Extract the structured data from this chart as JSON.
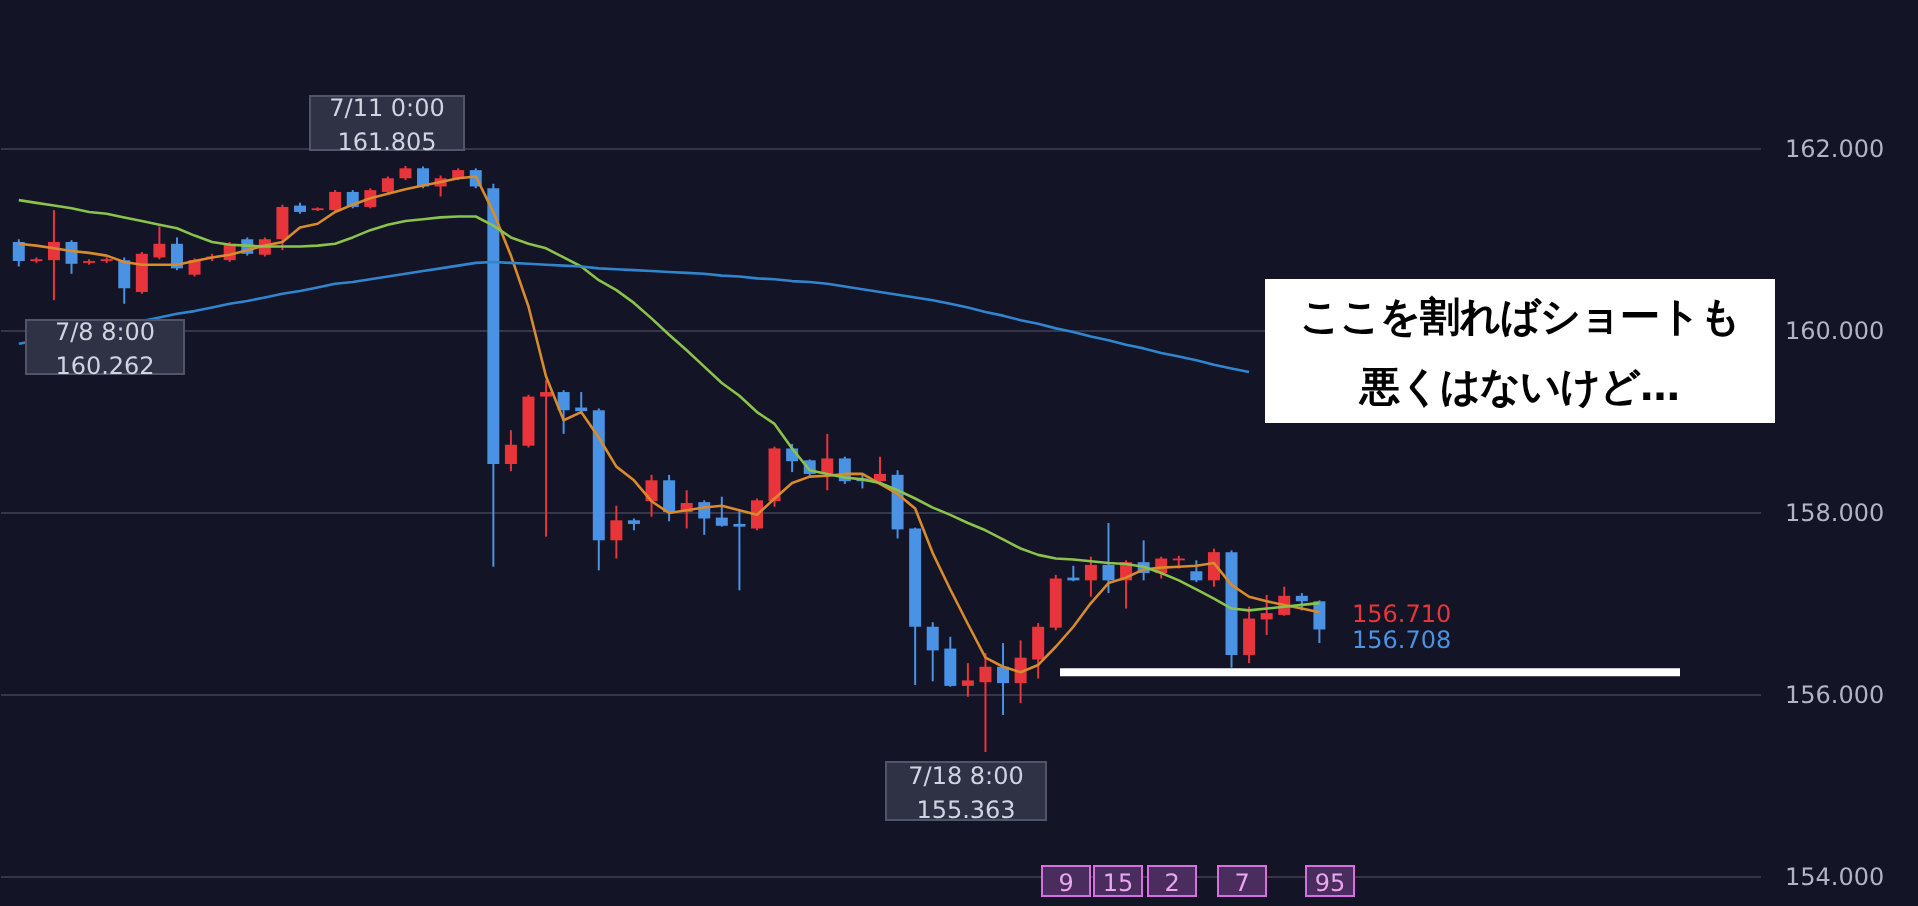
{
  "chart_data": {
    "type": "candlestick",
    "categories": [
      null,
      null,
      null,
      null,
      null,
      null,
      null,
      null,
      null,
      null,
      null,
      null,
      null,
      null,
      null,
      null,
      null,
      null,
      null,
      null,
      null,
      null,
      null,
      null,
      null,
      null,
      null,
      null,
      null,
      null,
      null,
      null,
      null,
      null,
      null,
      null,
      null,
      null,
      null,
      null,
      null,
      null,
      null,
      null,
      null,
      null,
      null,
      null,
      null,
      null,
      null,
      null,
      null,
      null,
      null,
      null,
      null,
      null,
      null,
      null,
      null,
      null,
      null,
      null,
      null,
      null,
      null,
      null,
      null,
      null,
      null,
      null,
      null,
      null,
      null
    ],
    "ohlc": [
      [
        160.97,
        161.0,
        160.7,
        160.76
      ],
      [
        160.76,
        160.8,
        160.74,
        160.78
      ],
      [
        160.77,
        161.32,
        160.33,
        160.97
      ],
      [
        160.97,
        160.99,
        160.62,
        160.73
      ],
      [
        160.74,
        160.78,
        160.72,
        160.76
      ],
      [
        160.76,
        160.8,
        160.74,
        160.78
      ],
      [
        160.77,
        160.8,
        160.29,
        160.46
      ],
      [
        160.42,
        160.86,
        160.4,
        160.84
      ],
      [
        160.8,
        161.14,
        160.78,
        160.95
      ],
      [
        160.95,
        161.02,
        160.66,
        160.68
      ],
      [
        160.61,
        160.79,
        160.59,
        160.77
      ],
      [
        160.8,
        160.84,
        160.76,
        160.81
      ],
      [
        160.77,
        160.97,
        160.75,
        160.95
      ],
      [
        161.0,
        161.02,
        160.82,
        160.84
      ],
      [
        160.83,
        161.02,
        160.81,
        161.0
      ],
      [
        161.0,
        161.38,
        160.88,
        161.355
      ],
      [
        161.37,
        161.4,
        161.28,
        161.3
      ],
      [
        161.32,
        161.35,
        161.31,
        161.34
      ],
      [
        161.32,
        161.54,
        161.3,
        161.52
      ],
      [
        161.52,
        161.54,
        161.34,
        161.355
      ],
      [
        161.355,
        161.56,
        161.34,
        161.54
      ],
      [
        161.52,
        161.69,
        161.5,
        161.67
      ],
      [
        161.67,
        161.805,
        161.65,
        161.78
      ],
      [
        161.78,
        161.8,
        161.56,
        161.58
      ],
      [
        161.58,
        161.7,
        161.47,
        161.67
      ],
      [
        161.67,
        161.78,
        161.65,
        161.76
      ],
      [
        161.76,
        161.78,
        161.56,
        161.58
      ],
      [
        161.56,
        161.61,
        157.4,
        158.53
      ],
      [
        158.53,
        158.9,
        158.45,
        158.74
      ],
      [
        158.73,
        159.29,
        158.71,
        159.27
      ],
      [
        159.27,
        159.45,
        157.73,
        159.32
      ],
      [
        159.32,
        159.34,
        158.86,
        159.12
      ],
      [
        159.15,
        159.32,
        159.08,
        159.11
      ],
      [
        159.12,
        159.14,
        157.36,
        157.69
      ],
      [
        157.69,
        158.07,
        157.49,
        157.91
      ],
      [
        157.91,
        157.93,
        157.8,
        157.87
      ],
      [
        158.12,
        158.41,
        157.95,
        158.35
      ],
      [
        158.35,
        158.41,
        157.9,
        158.0
      ],
      [
        158.0,
        158.24,
        157.82,
        158.1
      ],
      [
        158.11,
        158.13,
        157.75,
        157.93
      ],
      [
        157.94,
        158.17,
        157.84,
        157.85
      ],
      [
        157.87,
        158.02,
        157.14,
        157.84
      ],
      [
        157.82,
        158.15,
        157.8,
        158.13
      ],
      [
        158.12,
        158.72,
        158.06,
        158.7
      ],
      [
        158.7,
        158.75,
        158.44,
        158.56
      ],
      [
        158.57,
        158.58,
        158.4,
        158.42
      ],
      [
        158.42,
        158.86,
        158.24,
        158.59
      ],
      [
        158.59,
        158.61,
        158.31,
        158.34
      ],
      [
        158.37,
        158.41,
        158.26,
        158.34
      ],
      [
        158.34,
        158.61,
        158.31,
        158.42
      ],
      [
        158.41,
        158.46,
        157.71,
        157.81
      ],
      [
        157.82,
        157.83,
        156.1,
        156.74
      ],
      [
        156.74,
        156.79,
        156.14,
        156.48
      ],
      [
        156.5,
        156.63,
        156.08,
        156.09
      ],
      [
        156.09,
        156.34,
        155.97,
        156.15
      ],
      [
        156.13,
        156.45,
        155.363,
        156.3
      ],
      [
        156.3,
        156.56,
        155.77,
        156.12
      ],
      [
        156.12,
        156.59,
        155.9,
        156.4
      ],
      [
        156.38,
        156.78,
        156.17,
        156.74
      ],
      [
        156.73,
        157.31,
        156.7,
        157.27
      ],
      [
        157.28,
        157.41,
        157.24,
        157.25
      ],
      [
        157.25,
        157.51,
        157.07,
        157.42
      ],
      [
        157.42,
        157.88,
        157.11,
        157.25
      ],
      [
        157.25,
        157.47,
        156.94,
        157.45
      ],
      [
        157.45,
        157.69,
        157.25,
        157.33
      ],
      [
        157.33,
        157.51,
        157.27,
        157.49
      ],
      [
        157.47,
        157.52,
        157.38,
        157.49
      ],
      [
        157.35,
        157.47,
        157.23,
        157.25
      ],
      [
        157.25,
        157.6,
        157.18,
        157.56
      ],
      [
        157.56,
        157.58,
        156.29,
        156.43
      ],
      [
        156.43,
        156.96,
        156.34,
        156.83
      ],
      [
        156.82,
        157.09,
        156.65,
        156.89
      ],
      [
        156.87,
        157.18,
        156.86,
        157.08
      ],
      [
        157.08,
        157.11,
        156.92,
        157.02
      ],
      [
        157.02,
        157.03,
        156.56,
        156.71
      ]
    ],
    "colors": [
      "#4a92e3",
      "#e8353b",
      "#e8353b",
      "#4a92e3",
      "#e8353b",
      "#e8353b",
      "#4a92e3",
      "#e8353b",
      "#e8353b",
      "#4a92e3",
      "#e8353b",
      "#e8353b",
      "#e8353b",
      "#4a92e3",
      "#e8353b",
      "#e8353b",
      "#4a92e3",
      "#e8353b",
      "#e8353b",
      "#4a92e3",
      "#e8353b",
      "#e8353b",
      "#e8353b",
      "#4a92e3",
      "#e8353b",
      "#e8353b",
      "#4a92e3",
      "#4a92e3",
      "#e8353b",
      "#e8353b",
      "#e8353b",
      "#4a92e3",
      "#4a92e3",
      "#4a92e3",
      "#e8353b",
      "#4a92e3",
      "#e8353b",
      "#4a92e3",
      "#e8353b",
      "#4a92e3",
      "#4a92e3",
      "#4a92e3",
      "#e8353b",
      "#e8353b",
      "#4a92e3",
      "#4a92e3",
      "#e8353b",
      "#4a92e3",
      "#4a92e3",
      "#e8353b",
      "#4a92e3",
      "#4a92e3",
      "#4a92e3",
      "#4a92e3",
      "#e8353b",
      "#e8353b",
      "#4a92e3",
      "#e8353b",
      "#e8353b",
      "#e8353b",
      "#4a92e3",
      "#e8353b",
      "#4a92e3",
      "#e8353b",
      "#4a92e3",
      "#e8353b",
      "#e8353b",
      "#4a92e3",
      "#e8353b",
      "#4a92e3",
      "#e8353b",
      "#e8353b",
      "#e8353b",
      "#4a92e3",
      "#4a92e3"
    ],
    "series": [
      {
        "type": "line",
        "color": "#d98a2b",
        "values": [
          160.95,
          160.93,
          160.9,
          160.87,
          160.85,
          160.82,
          160.75,
          160.72,
          160.72,
          160.72,
          160.76,
          160.8,
          160.83,
          160.88,
          160.93,
          160.97,
          161.13,
          161.17,
          161.3,
          161.38,
          161.45,
          161.5,
          161.55,
          161.59,
          161.63,
          161.67,
          161.69,
          161.3,
          160.82,
          160.26,
          159.49,
          159.01,
          159.1,
          158.82,
          158.5,
          158.35,
          158.12,
          157.99,
          158.02,
          158.05,
          158.07,
          158.02,
          157.97,
          158.15,
          158.32,
          158.39,
          158.4,
          158.42,
          158.42,
          158.31,
          158.2,
          158.04,
          157.55,
          157.15,
          156.77,
          156.4,
          156.3,
          156.24,
          156.32,
          156.52,
          156.74,
          157.0,
          157.22,
          157.28,
          157.37,
          157.39,
          157.4,
          157.41,
          157.44,
          157.2,
          157.07,
          157.02,
          156.98,
          156.94,
          156.9
        ]
      },
      {
        "type": "line",
        "color": "#8bc34a",
        "values": [
          161.43,
          161.4,
          161.37,
          161.34,
          161.3,
          161.28,
          161.24,
          161.2,
          161.16,
          161.12,
          161.04,
          160.97,
          160.94,
          160.93,
          160.92,
          160.92,
          160.92,
          160.93,
          160.95,
          161.02,
          161.1,
          161.16,
          161.2,
          161.22,
          161.24,
          161.25,
          161.25,
          161.15,
          161.02,
          160.95,
          160.9,
          160.8,
          160.7,
          160.55,
          160.44,
          160.3,
          160.13,
          159.95,
          159.78,
          159.6,
          159.42,
          159.28,
          159.1,
          158.97,
          158.7,
          158.46,
          158.42,
          158.38,
          158.36,
          158.32,
          158.24,
          158.15,
          158.05,
          157.97,
          157.88,
          157.8,
          157.7,
          157.6,
          157.53,
          157.49,
          157.48,
          157.46,
          157.44,
          157.43,
          157.4,
          157.33,
          157.25,
          157.15,
          157.05,
          156.94,
          156.92,
          156.94,
          156.96,
          156.98,
          157.0
        ]
      },
      {
        "type": "line",
        "color": "#2f86cf",
        "values": [
          159.85,
          null,
          null,
          null,
          null,
          null,
          null,
          160.1,
          160.14,
          160.18,
          160.21,
          160.25,
          160.29,
          160.32,
          160.36,
          160.4,
          160.43,
          160.47,
          160.51,
          160.53,
          160.56,
          160.59,
          160.62,
          160.65,
          160.68,
          160.71,
          160.74,
          160.75,
          160.74,
          160.73,
          160.72,
          160.71,
          160.7,
          160.68,
          160.67,
          160.66,
          160.65,
          160.64,
          160.63,
          160.62,
          160.6,
          160.59,
          160.57,
          160.56,
          160.54,
          160.53,
          160.51,
          160.48,
          160.45,
          160.42,
          160.39,
          160.36,
          160.33,
          160.29,
          160.25,
          160.2,
          160.16,
          160.11,
          160.07,
          160.02,
          159.98,
          159.93,
          159.89,
          159.84,
          159.8,
          159.75,
          159.71,
          159.67,
          159.62,
          159.58,
          159.54,
          null,
          null,
          null,
          null
        ]
      }
    ],
    "ylim": [
      153.67,
      163.63
    ],
    "yticks": [
      {
        "value": 154,
        "label": "154.000"
      },
      {
        "value": 156,
        "label": "156.000"
      },
      {
        "value": 158,
        "label": "158.000"
      },
      {
        "value": 160,
        "label": "160.000"
      },
      {
        "value": 162,
        "label": "162.000"
      }
    ],
    "grid": "y",
    "tick_labels": "y",
    "ref_lines": [
      {
        "axis": "y",
        "value": 156.24,
        "color": "#ffffff"
      }
    ],
    "annotations": [
      "7/11 0:00\n161.805",
      "7/8 8:00\n160.262",
      "7/18 8:00\n155.363",
      "ここを割ればショートも",
      "156.710",
      "156.708",
      "悪くはないけど…",
      "9",
      "15",
      "2",
      "7",
      "95"
    ]
  }
}
